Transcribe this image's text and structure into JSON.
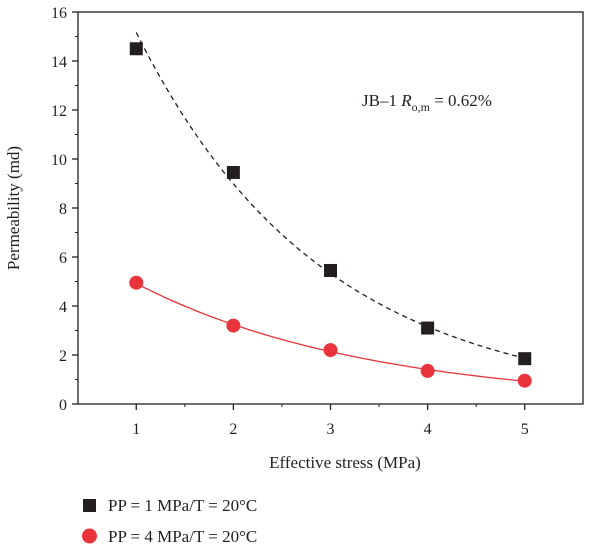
{
  "chart_data": {
    "type": "scatter",
    "xlabel": "Effective stress (MPa)",
    "ylabel": "Permeability (md)",
    "xlim": [
      0.4,
      5.6
    ],
    "ylim": [
      0,
      16
    ],
    "x_ticks": [
      "1",
      "2",
      "3",
      "4",
      "5"
    ],
    "y_ticks": [
      "0",
      "2",
      "4",
      "6",
      "8",
      "10",
      "12",
      "14",
      "16"
    ],
    "annotation": {
      "prefix": "JB–1 ",
      "symbol": "R",
      "subscript": "o,m",
      "suffix": " = 0.62%"
    },
    "grid": false,
    "legend": "bottom",
    "series": [
      {
        "name": "PP = 1 MPa/T = 20°C",
        "marker": "square",
        "color": "#231f20",
        "fit_style": "dashed",
        "x": [
          1,
          2,
          3,
          4,
          5
        ],
        "y": [
          14.5,
          9.45,
          5.45,
          3.1,
          1.85
        ]
      },
      {
        "name": "PP = 4 MPa/T = 20°C",
        "marker": "circle",
        "color": "#e8343a",
        "fit_style": "solid",
        "x": [
          1,
          2,
          3,
          4,
          5
        ],
        "y": [
          4.95,
          3.2,
          2.2,
          1.35,
          0.95
        ]
      }
    ]
  }
}
